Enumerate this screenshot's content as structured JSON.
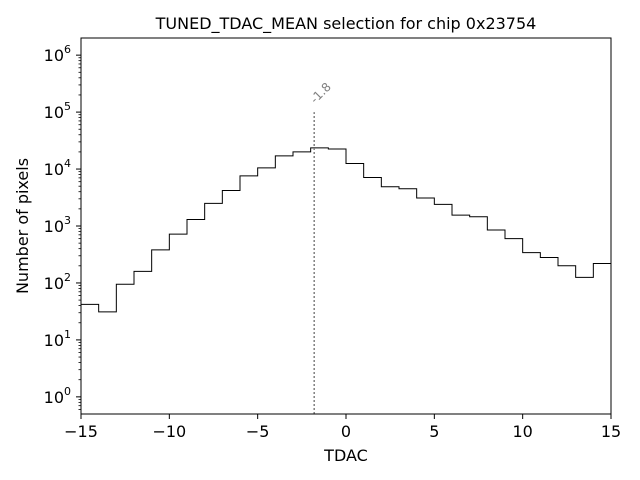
{
  "chart_data": {
    "type": "step-histogram",
    "title": "TUNED_TDAC_MEAN selection for chip 0x23754",
    "xlabel": "TDAC",
    "ylabel": "Number of pixels",
    "xlim": [
      -15,
      15
    ],
    "ylim": [
      0.5,
      2000000
    ],
    "yscale": "log",
    "grid": false,
    "line_color": "#000000",
    "x_ticks": [
      -15,
      -10,
      -5,
      0,
      5,
      10,
      15
    ],
    "x_tick_labels": [
      "−15",
      "−10",
      "−5",
      "0",
      "5",
      "10",
      "15"
    ],
    "y_ticks": [
      1,
      10,
      100,
      1000,
      10000,
      100000,
      1000000
    ],
    "y_tick_labels": [
      {
        "base": "10",
        "exp": "0"
      },
      {
        "base": "10",
        "exp": "1"
      },
      {
        "base": "10",
        "exp": "2"
      },
      {
        "base": "10",
        "exp": "3"
      },
      {
        "base": "10",
        "exp": "4"
      },
      {
        "base": "10",
        "exp": "5"
      },
      {
        "base": "10",
        "exp": "6"
      }
    ],
    "bin_edges": [
      -15,
      -14,
      -13,
      -12,
      -11,
      -10,
      -9,
      -8,
      -7,
      -6,
      -5,
      -4,
      -3,
      -2,
      -1,
      0,
      1,
      2,
      3,
      4,
      5,
      6,
      7,
      8,
      9,
      10,
      11,
      12,
      13,
      14,
      15
    ],
    "counts": [
      42,
      31,
      95,
      160,
      380,
      720,
      1300,
      2500,
      4200,
      7600,
      10500,
      17000,
      20000,
      23500,
      22500,
      12500,
      7100,
      4900,
      4500,
      3100,
      2400,
      1550,
      1450,
      850,
      600,
      340,
      280,
      200,
      125,
      220
    ],
    "annotation": {
      "x": -1.8,
      "y_top": 100000,
      "label": "-1.8",
      "line_color": "#808080",
      "line_style": "dotted"
    }
  }
}
